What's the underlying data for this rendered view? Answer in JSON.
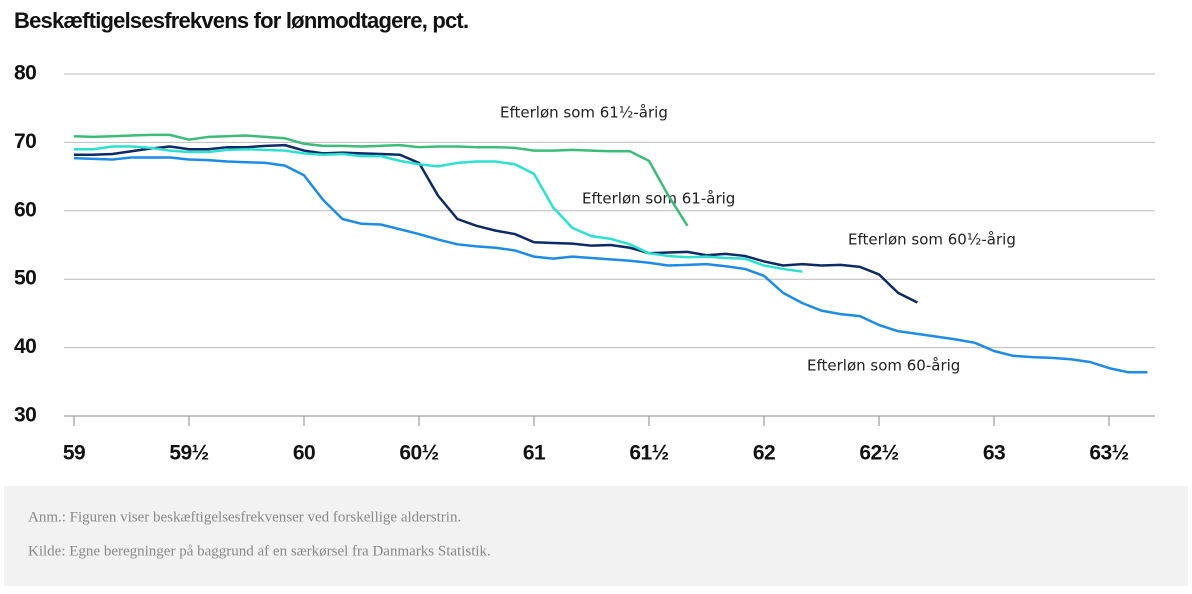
{
  "chart_data": {
    "type": "line",
    "title": "Beskæftigelsesfrekvens for lønmodtagere, pct.",
    "xlim": [
      59,
      63.7
    ],
    "ylim": [
      30,
      80
    ],
    "yticks": [
      30,
      40,
      50,
      60,
      70,
      80
    ],
    "xticks": [
      59,
      {
        "value": 59.5,
        "label": "59½"
      },
      60,
      {
        "value": 60.5,
        "label": "60½"
      },
      61,
      {
        "value": 61.5,
        "label": "61½"
      },
      62,
      {
        "value": 62.5,
        "label": "62½"
      },
      63,
      {
        "value": 63.5,
        "label": "63½"
      }
    ],
    "grid": true,
    "series": [
      {
        "name": "Efterløn som 60-årig",
        "color": "#1e8ce6",
        "x": [
          59,
          59.083,
          59.167,
          59.25,
          59.333,
          59.417,
          59.5,
          59.583,
          59.667,
          59.75,
          59.833,
          59.917,
          60,
          60.083,
          60.167,
          60.25,
          60.333,
          60.417,
          60.5,
          60.583,
          60.667,
          60.75,
          60.833,
          60.917,
          61,
          61.083,
          61.167,
          61.25,
          61.333,
          61.417,
          61.5,
          61.583,
          61.667,
          61.75,
          61.833,
          61.917,
          62,
          62.083,
          62.167,
          62.25,
          62.333,
          62.417,
          62.5,
          62.583,
          62.667,
          62.75,
          62.833,
          62.917,
          63,
          63.083,
          63.167,
          63.25,
          63.333,
          63.417,
          63.5,
          63.583,
          63.667
        ],
        "values": [
          67.7,
          67.6,
          67.5,
          67.8,
          67.8,
          67.8,
          67.5,
          67.4,
          67.2,
          67.1,
          67.0,
          66.6,
          65.2,
          61.6,
          58.8,
          58.1,
          58.0,
          57.3,
          56.6,
          55.8,
          55.1,
          54.8,
          54.6,
          54.2,
          53.3,
          53.0,
          53.3,
          53.1,
          52.9,
          52.7,
          52.4,
          52.0,
          52.1,
          52.2,
          51.9,
          51.5,
          50.5,
          48.0,
          46.5,
          45.4,
          44.9,
          44.6,
          43.3,
          42.4,
          42.0,
          41.6,
          41.2,
          40.7,
          39.5,
          38.8,
          38.6,
          38.5,
          38.3,
          37.9,
          37.0,
          36.4,
          36.4
        ]
      },
      {
        "name": "Efterløn som 60½-årig",
        "color": "#0d2a66",
        "x": [
          59,
          59.083,
          59.167,
          59.25,
          59.333,
          59.417,
          59.5,
          59.583,
          59.667,
          59.75,
          59.833,
          59.917,
          60,
          60.083,
          60.167,
          60.25,
          60.333,
          60.417,
          60.5,
          60.583,
          60.667,
          60.75,
          60.833,
          60.917,
          61,
          61.083,
          61.167,
          61.25,
          61.333,
          61.417,
          61.5,
          61.583,
          61.667,
          61.75,
          61.833,
          61.917,
          62,
          62.083,
          62.167,
          62.25,
          62.333,
          62.417,
          62.5,
          62.583,
          62.667
        ],
        "values": [
          68.2,
          68.2,
          68.3,
          68.7,
          69.1,
          69.4,
          69.0,
          69.0,
          69.3,
          69.3,
          69.5,
          69.6,
          68.8,
          68.4,
          68.5,
          68.4,
          68.3,
          68.2,
          67.0,
          62.2,
          58.8,
          57.8,
          57.1,
          56.6,
          55.4,
          55.3,
          55.2,
          54.9,
          55.0,
          54.6,
          53.8,
          53.9,
          54.0,
          53.5,
          53.7,
          53.4,
          52.6,
          52.0,
          52.2,
          52.0,
          52.1,
          51.8,
          50.7,
          48.0,
          46.6
        ]
      },
      {
        "name": "Efterløn som 61-årig",
        "color": "#2ee0cf",
        "x": [
          59,
          59.083,
          59.167,
          59.25,
          59.333,
          59.417,
          59.5,
          59.583,
          59.667,
          59.75,
          59.833,
          59.917,
          60,
          60.083,
          60.167,
          60.25,
          60.333,
          60.417,
          60.5,
          60.583,
          60.667,
          60.75,
          60.833,
          60.917,
          61,
          61.083,
          61.167,
          61.25,
          61.333,
          61.417,
          61.5,
          61.583,
          61.667,
          61.75,
          61.833,
          61.917,
          62,
          62.083,
          62.167
        ],
        "values": [
          69.0,
          69.0,
          69.4,
          69.4,
          69.2,
          68.8,
          68.6,
          68.6,
          68.9,
          69.0,
          68.9,
          68.8,
          68.4,
          68.2,
          68.3,
          68.0,
          68.0,
          67.3,
          66.8,
          66.5,
          67.0,
          67.2,
          67.2,
          66.8,
          65.4,
          60.5,
          57.5,
          56.3,
          55.9,
          55.1,
          53.8,
          53.4,
          53.2,
          53.3,
          53.1,
          53.0,
          52.0,
          51.5,
          51.1
        ]
      },
      {
        "name": "Efterløn som 61½-årig",
        "color": "#3dbb7a",
        "x": [
          59,
          59.083,
          59.167,
          59.25,
          59.333,
          59.417,
          59.5,
          59.583,
          59.667,
          59.75,
          59.833,
          59.917,
          60,
          60.083,
          60.167,
          60.25,
          60.333,
          60.417,
          60.5,
          60.583,
          60.667,
          60.75,
          60.833,
          60.917,
          61,
          61.083,
          61.167,
          61.25,
          61.333,
          61.417,
          61.5,
          61.583,
          61.667
        ],
        "values": [
          70.9,
          70.8,
          70.9,
          71.0,
          71.1,
          71.1,
          70.4,
          70.8,
          70.9,
          71.0,
          70.8,
          70.6,
          69.8,
          69.5,
          69.5,
          69.4,
          69.5,
          69.6,
          69.3,
          69.4,
          69.4,
          69.3,
          69.3,
          69.2,
          68.8,
          68.8,
          68.9,
          68.8,
          68.7,
          68.7,
          67.3,
          62.3,
          57.8
        ]
      }
    ],
    "notes": [
      "Anm.: Figuren viser beskæftigelsesfrekvenser ved forskellige alderstrin.",
      "Kilde: Egne beregninger på baggrund af en særkørsel fra Danmarks Statistik."
    ]
  }
}
